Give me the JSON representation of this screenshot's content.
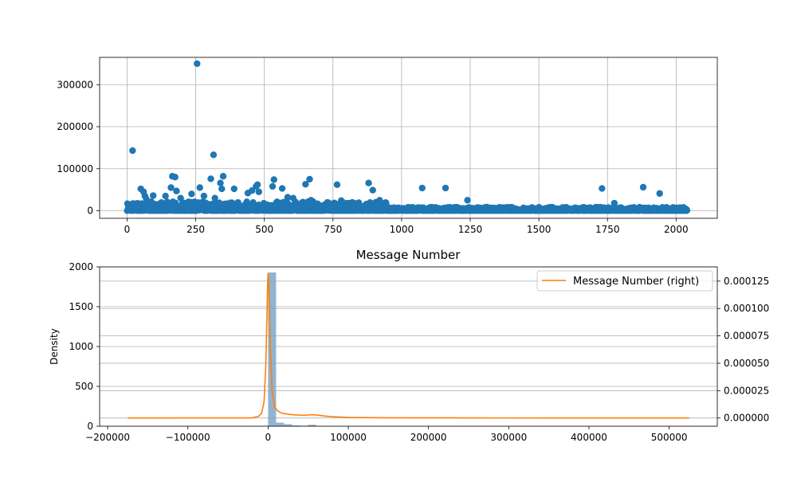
{
  "colors": {
    "scatter": "#1f77b4",
    "hist": "#7fa7c9",
    "kde": "#ff7f0e",
    "grid": "#b0b0b0",
    "axis": "#000000"
  },
  "chart_data": [
    {
      "type": "scatter",
      "title": "",
      "xlabel": "",
      "ylabel": "",
      "xlim": [
        -100,
        2150
      ],
      "ylim": [
        -18000,
        365000
      ],
      "xticks": [
        0,
        250,
        500,
        750,
        1000,
        1250,
        1500,
        1750,
        2000
      ],
      "yticks": [
        0,
        100000,
        200000,
        300000
      ],
      "grid": true,
      "outliers": [
        {
          "x": 20,
          "y": 143000
        },
        {
          "x": 50,
          "y": 52000
        },
        {
          "x": 60,
          "y": 45000
        },
        {
          "x": 65,
          "y": 35000
        },
        {
          "x": 70,
          "y": 28000
        },
        {
          "x": 95,
          "y": 36000
        },
        {
          "x": 140,
          "y": 35000
        },
        {
          "x": 160,
          "y": 55000
        },
        {
          "x": 165,
          "y": 82000
        },
        {
          "x": 175,
          "y": 80000
        },
        {
          "x": 180,
          "y": 47000
        },
        {
          "x": 195,
          "y": 30000
        },
        {
          "x": 235,
          "y": 40000
        },
        {
          "x": 255,
          "y": 350000
        },
        {
          "x": 265,
          "y": 55000
        },
        {
          "x": 280,
          "y": 35000
        },
        {
          "x": 305,
          "y": 76000
        },
        {
          "x": 315,
          "y": 133000
        },
        {
          "x": 320,
          "y": 30000
        },
        {
          "x": 340,
          "y": 66000
        },
        {
          "x": 345,
          "y": 52000
        },
        {
          "x": 350,
          "y": 82000
        },
        {
          "x": 390,
          "y": 52000
        },
        {
          "x": 440,
          "y": 42000
        },
        {
          "x": 455,
          "y": 48000
        },
        {
          "x": 470,
          "y": 58000
        },
        {
          "x": 475,
          "y": 62000
        },
        {
          "x": 480,
          "y": 45000
        },
        {
          "x": 530,
          "y": 58000
        },
        {
          "x": 535,
          "y": 74000
        },
        {
          "x": 565,
          "y": 53000
        },
        {
          "x": 585,
          "y": 32000
        },
        {
          "x": 605,
          "y": 30000
        },
        {
          "x": 650,
          "y": 63000
        },
        {
          "x": 665,
          "y": 75000
        },
        {
          "x": 670,
          "y": 25000
        },
        {
          "x": 765,
          "y": 62000
        },
        {
          "x": 780,
          "y": 24000
        },
        {
          "x": 880,
          "y": 66000
        },
        {
          "x": 895,
          "y": 49000
        },
        {
          "x": 920,
          "y": 25000
        },
        {
          "x": 1075,
          "y": 54000
        },
        {
          "x": 1160,
          "y": 54000
        },
        {
          "x": 1240,
          "y": 25000
        },
        {
          "x": 1730,
          "y": 53000
        },
        {
          "x": 1775,
          "y": 18000
        },
        {
          "x": 1880,
          "y": 56000
        },
        {
          "x": 1940,
          "y": 41000
        }
      ],
      "dense_band": {
        "x_range": [
          0,
          2040
        ],
        "y_max_early": 22000,
        "y_max_late": 9000,
        "count": 2040
      }
    },
    {
      "type": "histogram+kde",
      "title": "Message Number",
      "xlabel": "",
      "ylabel": "Density",
      "xlim": [
        -210000,
        560000
      ],
      "ylim": [
        0,
        2000
      ],
      "ylim_right": [
        -7.5e-06,
        0.000138
      ],
      "xticks": [
        -200000,
        -100000,
        0,
        100000,
        200000,
        300000,
        400000,
        500000
      ],
      "xtick_labels": [
        "−200000",
        "−100000",
        "0",
        "100000",
        "200000",
        "300000",
        "400000",
        "500000"
      ],
      "yticks": [
        0,
        500,
        1000,
        1500,
        2000
      ],
      "yticks_right": [
        0.0,
        2.5e-05,
        5e-05,
        7.5e-05,
        0.0001,
        0.000125
      ],
      "ytick_right_labels": [
        "0.000000",
        "0.000025",
        "0.000050",
        "0.000075",
        "0.000100",
        "0.000125"
      ],
      "grid": true,
      "legend": {
        "location": "top-right",
        "entries": [
          "Message Number (right)"
        ]
      },
      "histogram": {
        "bin_edges": [
          0,
          10000,
          20000,
          30000,
          40000,
          50000,
          60000
        ],
        "counts": [
          1930,
          45,
          25,
          10,
          6,
          18
        ]
      },
      "kde": {
        "x": [
          -175000,
          -20000,
          -12000,
          -8000,
          -5000,
          -3000,
          -1500,
          -500,
          0,
          500,
          1500,
          3000,
          5000,
          8000,
          12000,
          16000,
          20000,
          26000,
          34000,
          45000,
          55000,
          60000,
          70000,
          80000,
          100000,
          150000,
          250000,
          350000,
          525000
        ],
        "y": [
          0.0,
          1e-07,
          1.5e-06,
          4.5e-06,
          1.5e-05,
          4.5e-05,
          9e-05,
          0.000125,
          0.000132,
          0.000128,
          0.000105,
          6e-05,
          2.5e-05,
          1.05e-05,
          6.5e-06,
          4.8e-06,
          4e-06,
          3.4e-06,
          2.8e-06,
          2.5e-06,
          3e-06,
          2.8e-06,
          1.8e-06,
          1.2e-06,
          6e-07,
          2e-07,
          1e-07,
          0.0,
          0.0
        ]
      }
    }
  ]
}
